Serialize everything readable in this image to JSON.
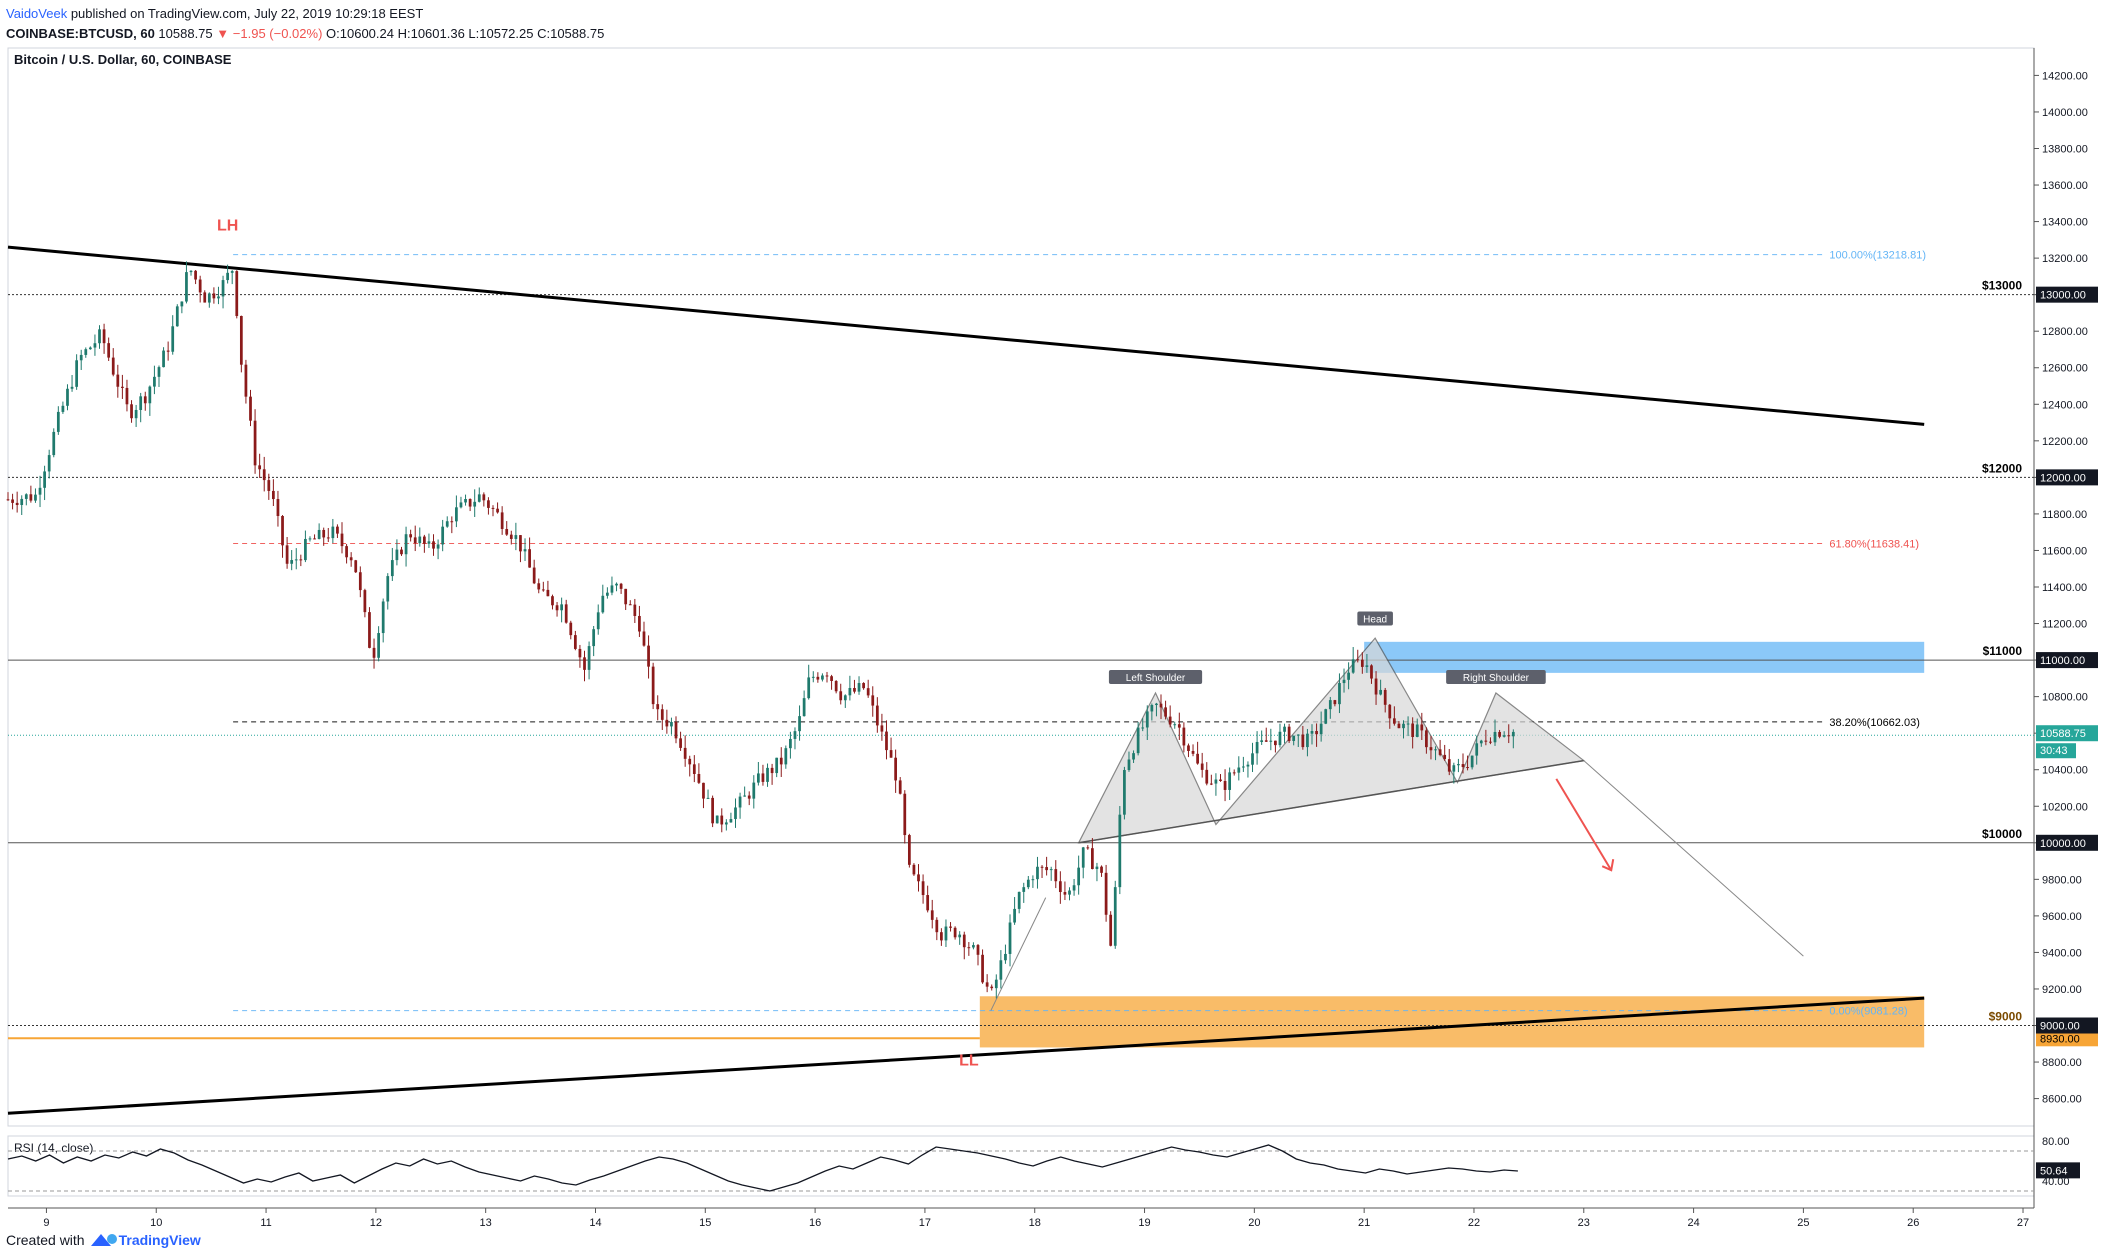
{
  "header": {
    "author": "VaidoVeek",
    "published": "published on TradingView.com, July 22, 2019 10:29:18 EEST",
    "symbol": "COINBASE:BTCUSD, 60",
    "last": "10588.75",
    "change": "−1.95 (−0.02%)",
    "ohlc": "O:10600.24 H:10601.36 L:10572.25 C:10588.75"
  },
  "footer": {
    "created_with": "Created with",
    "brand": "TradingView"
  },
  "colors": {
    "up": "#26a69a",
    "down": "#ef5350",
    "candle_up": "#1f7a6d",
    "candle_down": "#8b1a1a",
    "trend": "#000000",
    "fib_red": "#ef5350",
    "fib_blue": "#64b5f6",
    "blue_zone": "#64b5f6",
    "orange_zone": "#f7a536",
    "pattern_fill": "#d8d8d8"
  },
  "chart_data": [
    {
      "type": "candlestick",
      "title": "Bitcoin / U.S. Dollar, 60, COINBASE",
      "x_unit": "day of July 2019",
      "y_unit": "USD",
      "ylim": [
        8450,
        14350
      ],
      "xlim": [
        8.65,
        27.1
      ],
      "x_ticks": [
        "9",
        "10",
        "11",
        "12",
        "13",
        "14",
        "15",
        "16",
        "17",
        "18",
        "19",
        "20",
        "21",
        "22",
        "23",
        "24",
        "25",
        "26",
        "27"
      ],
      "y_ticks": [
        "8600.00",
        "8800.00",
        "9000.00",
        "9200.00",
        "9400.00",
        "9600.00",
        "9800.00",
        "10000.00",
        "10200.00",
        "10400.00",
        "10600.00",
        "10800.00",
        "11000.00",
        "11200.00",
        "11400.00",
        "11600.00",
        "11800.00",
        "12000.00",
        "12200.00",
        "12400.00",
        "12600.00",
        "12800.00",
        "13000.00",
        "13200.00",
        "13400.00",
        "13600.00",
        "13800.00",
        "14000.00",
        "14200.00"
      ],
      "price_path": [
        [
          8.65,
          11880
        ],
        [
          8.9,
          11900
        ],
        [
          9.1,
          12300
        ],
        [
          9.3,
          12650
        ],
        [
          9.5,
          12780
        ],
        [
          9.6,
          12600
        ],
        [
          9.75,
          12350
        ],
        [
          9.9,
          12450
        ],
        [
          10.1,
          12700
        ],
        [
          10.3,
          13150
        ],
        [
          10.45,
          12980
        ],
        [
          10.6,
          13050
        ],
        [
          10.7,
          13150
        ],
        [
          10.78,
          12600
        ],
        [
          10.9,
          12100
        ],
        [
          11.05,
          11900
        ],
        [
          11.2,
          11500
        ],
        [
          11.4,
          11650
        ],
        [
          11.6,
          11700
        ],
        [
          11.8,
          11550
        ],
        [
          11.97,
          11000
        ],
        [
          12.1,
          11450
        ],
        [
          12.3,
          11700
        ],
        [
          12.5,
          11600
        ],
        [
          12.7,
          11800
        ],
        [
          12.95,
          11900
        ],
        [
          13.1,
          11800
        ],
        [
          13.3,
          11650
        ],
        [
          13.5,
          11350
        ],
        [
          13.7,
          11300
        ],
        [
          13.9,
          10950
        ],
        [
          14.05,
          11350
        ],
        [
          14.2,
          11400
        ],
        [
          14.4,
          11200
        ],
        [
          14.55,
          10700
        ],
        [
          14.7,
          10650
        ],
        [
          14.9,
          10400
        ],
        [
          15.1,
          10100
        ],
        [
          15.3,
          10200
        ],
        [
          15.5,
          10350
        ],
        [
          15.7,
          10450
        ],
        [
          15.85,
          10650
        ],
        [
          15.95,
          10900
        ],
        [
          16.1,
          10950
        ],
        [
          16.25,
          10800
        ],
        [
          16.45,
          10850
        ],
        [
          16.6,
          10600
        ],
        [
          16.75,
          10350
        ],
        [
          16.85,
          9850
        ],
        [
          17.0,
          9700
        ],
        [
          17.15,
          9500
        ],
        [
          17.3,
          9520
        ],
        [
          17.45,
          9400
        ],
        [
          17.6,
          9150
        ],
        [
          17.7,
          9350
        ],
        [
          17.85,
          9700
        ],
        [
          18.0,
          9850
        ],
        [
          18.15,
          9850
        ],
        [
          18.3,
          9700
        ],
        [
          18.45,
          9950
        ],
        [
          18.6,
          9850
        ],
        [
          18.7,
          9400
        ],
        [
          18.8,
          10400
        ],
        [
          18.95,
          10600
        ],
        [
          19.1,
          10750
        ],
        [
          19.3,
          10650
        ],
        [
          19.5,
          10400
        ],
        [
          19.7,
          10300
        ],
        [
          19.9,
          10450
        ],
        [
          20.1,
          10550
        ],
        [
          20.3,
          10600
        ],
        [
          20.5,
          10550
        ],
        [
          20.7,
          10750
        ],
        [
          20.85,
          10950
        ],
        [
          21.0,
          11000
        ],
        [
          21.15,
          10800
        ],
        [
          21.3,
          10650
        ],
        [
          21.5,
          10600
        ],
        [
          21.65,
          10500
        ],
        [
          21.8,
          10380
        ],
        [
          21.95,
          10450
        ],
        [
          22.1,
          10580
        ],
        [
          22.25,
          10620
        ],
        [
          22.4,
          10600
        ]
      ],
      "horizontal_levels": [
        {
          "label": "$13000",
          "price": 13000,
          "tag": "13000.00"
        },
        {
          "label": "$12000",
          "price": 12000,
          "tag": "12000.00"
        },
        {
          "label": "$11000",
          "price": 11000,
          "tag": "11000.00"
        },
        {
          "label": "$10000",
          "price": 10000,
          "tag": "10000.00"
        },
        {
          "label": "$9000",
          "price": 9000,
          "tag": "9000.00"
        }
      ],
      "fib_levels": [
        {
          "label": "100.00%(13218.81)",
          "price": 13218.81,
          "color": "#64b5f6"
        },
        {
          "label": "61.80%(11638.41)",
          "price": 11638.41,
          "color": "#ef5350"
        },
        {
          "label": "38.20%(10662.03)",
          "price": 10662.03,
          "color": "#000000"
        },
        {
          "label": "0.00%(9081.28)",
          "price": 9081.28,
          "color": "#64b5f6"
        }
      ],
      "zones": [
        {
          "name": "resistance",
          "x": [
            21.0,
            26.1
          ],
          "price": [
            10930,
            11100
          ],
          "color": "#64b5f6"
        },
        {
          "name": "support",
          "x": [
            17.5,
            26.1
          ],
          "price": [
            8880,
            9160
          ],
          "color": "#f7a536",
          "tag": "8930.00"
        }
      ],
      "trendlines": [
        {
          "from": [
            8.65,
            13260
          ],
          "to": [
            26.1,
            12290
          ]
        },
        {
          "from": [
            8.65,
            8520
          ],
          "to": [
            26.1,
            9150
          ]
        }
      ],
      "pattern": {
        "neckline": {
          "from": [
            18.4,
            10000
          ],
          "to": [
            23.0,
            10450
          ]
        },
        "points": [
          [
            18.4,
            10000
          ],
          [
            19.1,
            10820
          ],
          [
            19.65,
            10100
          ],
          [
            21.1,
            11120
          ],
          [
            21.85,
            10330
          ],
          [
            22.2,
            10820
          ],
          [
            23.0,
            10450
          ]
        ],
        "labels": [
          {
            "text": "Left Shoulder",
            "at": [
              19.1,
              10880
            ]
          },
          {
            "text": "Head",
            "at": [
              21.1,
              11200
            ]
          },
          {
            "text": "Right Shoulder",
            "at": [
              22.2,
              10880
            ]
          }
        ],
        "projection": {
          "from": [
            23.0,
            10450
          ],
          "to": [
            25.0,
            9380
          ]
        },
        "arrow": {
          "from": [
            22.75,
            10350
          ],
          "to": [
            23.25,
            9850
          ]
        }
      },
      "annotations": [
        {
          "text": "LH",
          "at": [
            10.65,
            13350
          ]
        },
        {
          "text": "LL",
          "at": [
            17.4,
            8780
          ]
        }
      ],
      "last_price": {
        "value": "10588.75",
        "countdown": "30:43",
        "price": 10588.75
      }
    },
    {
      "type": "line",
      "title": "RSI (14, close)",
      "ylim": [
        25,
        85
      ],
      "y_ticks": [
        "80.00",
        "40.00"
      ],
      "guides": [
        70,
        30
      ],
      "last_value": "50.64",
      "values": [
        62,
        65,
        60,
        66,
        58,
        64,
        60,
        66,
        63,
        69,
        65,
        72,
        68,
        61,
        56,
        50,
        44,
        38,
        42,
        39,
        44,
        48,
        40,
        43,
        46,
        38,
        45,
        52,
        58,
        55,
        62,
        57,
        60,
        54,
        49,
        46,
        43,
        40,
        45,
        42,
        38,
        36,
        41,
        45,
        50,
        55,
        60,
        64,
        62,
        58,
        52,
        46,
        40,
        36,
        33,
        30,
        34,
        38,
        44,
        50,
        55,
        52,
        58,
        64,
        61,
        57,
        66,
        74,
        72,
        70,
        68,
        65,
        62,
        58,
        55,
        60,
        64,
        60,
        57,
        54,
        58,
        62,
        66,
        70,
        74,
        71,
        69,
        66,
        64,
        68,
        72,
        76,
        70,
        62,
        58,
        56,
        52,
        50,
        48,
        52,
        50,
        47,
        49,
        51,
        53,
        52,
        50,
        49,
        51,
        50
      ]
    }
  ]
}
